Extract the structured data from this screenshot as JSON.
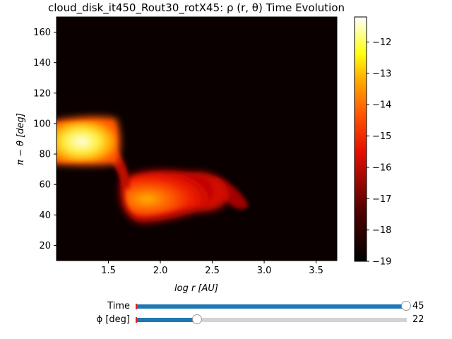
{
  "chart_data": {
    "type": "heatmap",
    "title": "cloud_disk_it450_Rout30_rotX45: ρ (r, θ) Time Evolution",
    "xlabel": "log r [AU]",
    "ylabel": "π − θ [deg]",
    "xlim": [
      1.0,
      3.7
    ],
    "ylim": [
      10,
      170
    ],
    "xticks": [
      "1.5",
      "2.0",
      "2.5",
      "3.0",
      "3.5"
    ],
    "xtick_values": [
      1.5,
      2.0,
      2.5,
      3.0,
      3.5
    ],
    "yticks": [
      "20",
      "40",
      "60",
      "80",
      "100",
      "120",
      "140",
      "160"
    ],
    "ytick_values": [
      20,
      40,
      60,
      80,
      100,
      120,
      140,
      160
    ],
    "colormap": "afmhot",
    "colorbar": {
      "range": [
        -19,
        -11.2
      ],
      "ticks": [
        "−12",
        "−13",
        "−14",
        "−15",
        "−16",
        "−17",
        "−18",
        "−19"
      ],
      "tick_values": [
        -12,
        -13,
        -14,
        -15,
        -16,
        -17,
        -18,
        -19
      ]
    },
    "background_value": -19,
    "features": [
      {
        "name": "dense-clump",
        "x_range": [
          1.0,
          1.6
        ],
        "y_range": [
          78,
          100
        ],
        "peak_log_density": -12
      },
      {
        "name": "connecting-bridge",
        "x_range": [
          1.55,
          1.8
        ],
        "y_range": [
          55,
          90
        ],
        "peak_log_density": -16
      },
      {
        "name": "disk-structure",
        "x_range": [
          1.7,
          2.6
        ],
        "y_range": [
          38,
          68
        ],
        "peak_log_density": -14.5
      },
      {
        "name": "outer-tail",
        "x_range": [
          2.4,
          2.85
        ],
        "y_range": [
          44,
          58
        ],
        "peak_log_density": -17
      }
    ]
  },
  "sliders": [
    {
      "label": "Time",
      "value": "45",
      "fraction": 1.0
    },
    {
      "label": "ϕ [deg]",
      "value": "22",
      "fraction": 0.23
    }
  ],
  "colors": {
    "slider_fill": "#1f77b4",
    "slider_track": "#d3d3d3",
    "background": "#0a0000"
  }
}
